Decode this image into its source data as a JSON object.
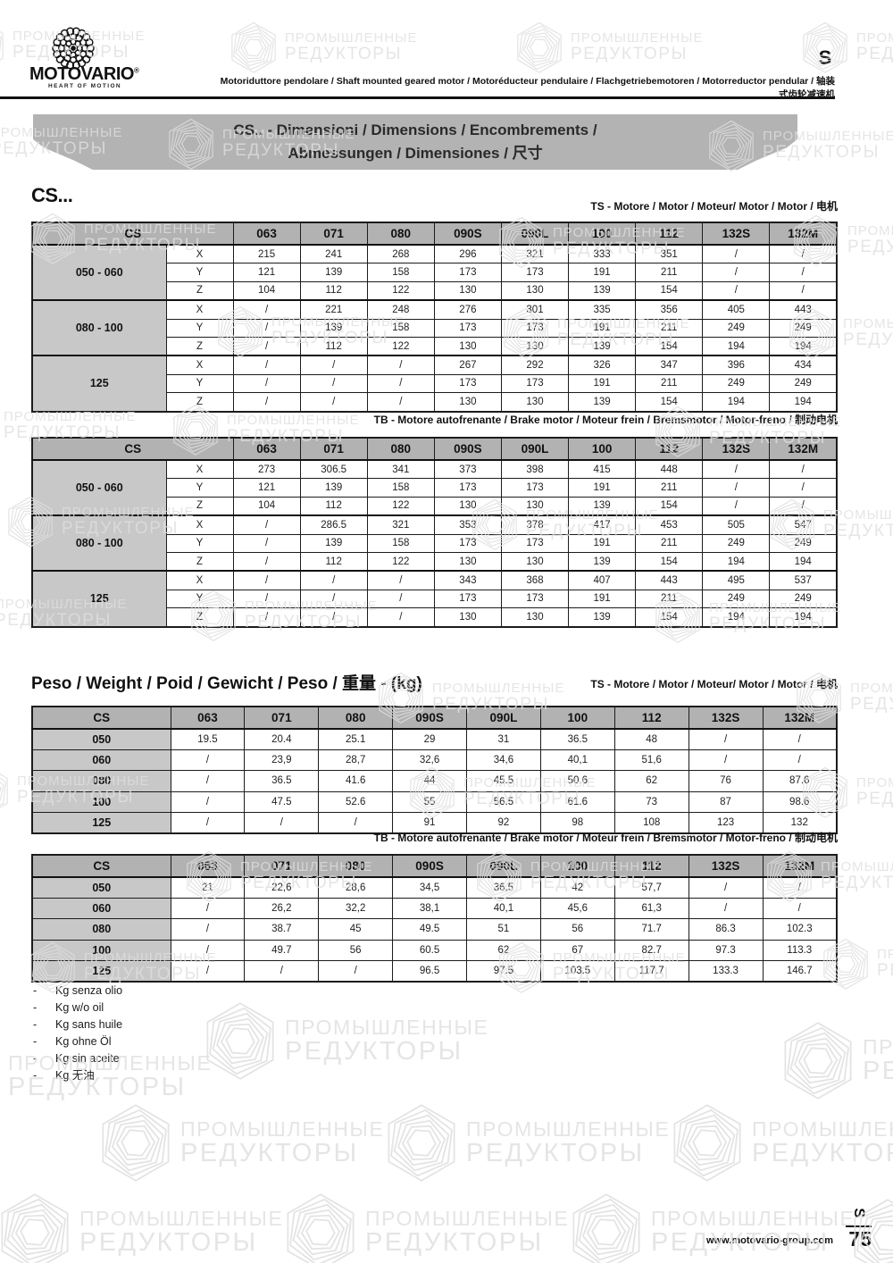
{
  "header": {
    "brand": "MOTOVARIO",
    "brand_mark": "®",
    "tagline": "HEART OF MOTION",
    "subtitle": "Motoriduttore pendolare / Shaft mounted geared motor / Motoréducteur pendulaire / Flachgetriebemotoren / Motorreductor pendular / 轴装式齿轮减速机",
    "section_letter": "S"
  },
  "banner": {
    "line1": "CS.. - Dimensioni / Dimensions / Encombrements /",
    "line2": "Abmessungen / Dimensiones / 尺寸"
  },
  "sections": {
    "cs_title": "CS..."
  },
  "labels": {
    "ts": "TS - Motore / Motor / Moteur/ Motor / Motor / 电机",
    "tb": "TB - Motore autofrenante / Brake motor / Moteur frein / Bremsmotor / Motor-freno / 制动电机"
  },
  "weight": {
    "title": "Peso / Weight / Poid / Gewicht / Peso / 重量 - (kg)"
  },
  "tables": {
    "columns": [
      "CS",
      "063",
      "071",
      "080",
      "090S",
      "090L",
      "100",
      "112",
      "132S",
      "132M"
    ],
    "dim_ts": {
      "groups": [
        {
          "label": "050 - 060",
          "rows": [
            {
              "axis": "X",
              "values": [
                "215",
                "241",
                "268",
                "296",
                "321",
                "333",
                "351",
                "/",
                "/"
              ]
            },
            {
              "axis": "Y",
              "values": [
                "121",
                "139",
                "158",
                "173",
                "173",
                "191",
                "211",
                "/",
                "/"
              ]
            },
            {
              "axis": "Z",
              "values": [
                "104",
                "112",
                "122",
                "130",
                "130",
                "139",
                "154",
                "/",
                "/"
              ]
            }
          ]
        },
        {
          "label": "080 - 100",
          "rows": [
            {
              "axis": "X",
              "values": [
                "/",
                "221",
                "248",
                "276",
                "301",
                "335",
                "356",
                "405",
                "443"
              ]
            },
            {
              "axis": "Y",
              "values": [
                "/",
                "139",
                "158",
                "173",
                "173",
                "191",
                "211",
                "249",
                "249"
              ]
            },
            {
              "axis": "Z",
              "values": [
                "/",
                "112",
                "122",
                "130",
                "130",
                "139",
                "154",
                "194",
                "194"
              ]
            }
          ]
        },
        {
          "label": "125",
          "rows": [
            {
              "axis": "X",
              "values": [
                "/",
                "/",
                "/",
                "267",
                "292",
                "326",
                "347",
                "396",
                "434"
              ]
            },
            {
              "axis": "Y",
              "values": [
                "/",
                "/",
                "/",
                "173",
                "173",
                "191",
                "211",
                "249",
                "249"
              ]
            },
            {
              "axis": "Z",
              "values": [
                "/",
                "/",
                "/",
                "130",
                "130",
                "139",
                "154",
                "194",
                "194"
              ]
            }
          ]
        }
      ]
    },
    "dim_tb": {
      "groups": [
        {
          "label": "050 - 060",
          "rows": [
            {
              "axis": "X",
              "values": [
                "273",
                "306.5",
                "341",
                "373",
                "398",
                "415",
                "448",
                "/",
                "/"
              ]
            },
            {
              "axis": "Y",
              "values": [
                "121",
                "139",
                "158",
                "173",
                "173",
                "191",
                "211",
                "/",
                "/"
              ]
            },
            {
              "axis": "Z",
              "values": [
                "104",
                "112",
                "122",
                "130",
                "130",
                "139",
                "154",
                "/",
                "/"
              ]
            }
          ]
        },
        {
          "label": "080 - 100",
          "rows": [
            {
              "axis": "X",
              "values": [
                "/",
                "286.5",
                "321",
                "353",
                "378",
                "417",
                "453",
                "505",
                "547"
              ]
            },
            {
              "axis": "Y",
              "values": [
                "/",
                "139",
                "158",
                "173",
                "173",
                "191",
                "211",
                "249",
                "249"
              ]
            },
            {
              "axis": "Z",
              "values": [
                "/",
                "112",
                "122",
                "130",
                "130",
                "139",
                "154",
                "194",
                "194"
              ]
            }
          ]
        },
        {
          "label": "125",
          "rows": [
            {
              "axis": "X",
              "values": [
                "/",
                "/",
                "/",
                "343",
                "368",
                "407",
                "443",
                "495",
                "537"
              ]
            },
            {
              "axis": "Y",
              "values": [
                "/",
                "/",
                "/",
                "173",
                "173",
                "191",
                "211",
                "249",
                "249"
              ]
            },
            {
              "axis": "Z",
              "values": [
                "/",
                "/",
                "/",
                "130",
                "130",
                "139",
                "154",
                "194",
                "194"
              ]
            }
          ]
        }
      ]
    },
    "weight_ts": {
      "rows": [
        {
          "label": "050",
          "values": [
            "19.5",
            "20.4",
            "25.1",
            "29",
            "31",
            "36.5",
            "48",
            "/",
            "/"
          ]
        },
        {
          "label": "060",
          "values": [
            "/",
            "23,9",
            "28,7",
            "32,6",
            "34,6",
            "40,1",
            "51,6",
            "/",
            "/"
          ]
        },
        {
          "label": "080",
          "values": [
            "/",
            "36.5",
            "41.6",
            "44",
            "45.5",
            "50.6",
            "62",
            "76",
            "87.6"
          ]
        },
        {
          "label": "100",
          "values": [
            "/",
            "47.5",
            "52.6",
            "55",
            "56.5",
            "61.6",
            "73",
            "87",
            "98.6"
          ]
        },
        {
          "label": "125",
          "values": [
            "/",
            "/",
            "/",
            "91",
            "92",
            "98",
            "108",
            "123",
            "132"
          ]
        }
      ]
    },
    "weight_tb": {
      "rows": [
        {
          "label": "050",
          "values": [
            "21",
            "22,6",
            "28,6",
            "34,5",
            "36,5",
            "42",
            "57,7",
            "/",
            "/"
          ]
        },
        {
          "label": "060",
          "values": [
            "/",
            "26,2",
            "32,2",
            "38,1",
            "40,1",
            "45,6",
            "61,3",
            "/",
            "/"
          ]
        },
        {
          "label": "080",
          "values": [
            "/",
            "38.7",
            "45",
            "49.5",
            "51",
            "56",
            "71.7",
            "86.3",
            "102.3"
          ]
        },
        {
          "label": "100",
          "values": [
            "/",
            "49.7",
            "56",
            "60.5",
            "62",
            "67",
            "82.7",
            "97.3",
            "113.3"
          ]
        },
        {
          "label": "125",
          "values": [
            "/",
            "/",
            "/",
            "96.5",
            "97.5",
            "103.5",
            "117.7",
            "133.3",
            "146.7"
          ]
        }
      ]
    }
  },
  "footnotes": [
    "Kg senza olio",
    "Kg w/o oil",
    "Kg sans huile",
    "Kg ohne Öl",
    "Kg sin aceite",
    "Kg 无油"
  ],
  "footer": {
    "website": "www.motovario-group.com",
    "page": "75",
    "section_letter": "S"
  },
  "watermark": {
    "line1": "ПРОМЫШЛЕННЫЕ",
    "line2": "РЕДУКТОРЫ"
  }
}
